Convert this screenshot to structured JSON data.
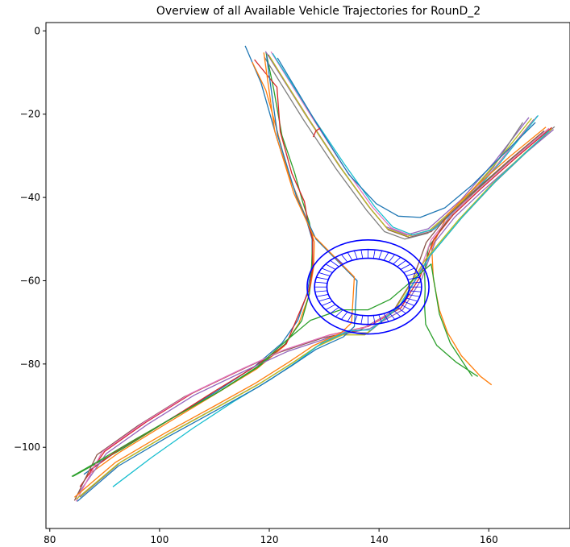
{
  "chart_data": {
    "type": "line",
    "title": "Overview of all Available Vehicle Trajectories for RounD_2",
    "xlabel": "",
    "ylabel": "",
    "xlim": [
      79.3,
      174.8
    ],
    "ylim": [
      -119.5,
      2.0
    ],
    "x_ticks": [
      80,
      100,
      120,
      140,
      160
    ],
    "y_ticks": [
      0,
      -20,
      -40,
      -60,
      -80,
      -100
    ],
    "grid": false,
    "legend": "none",
    "palette": [
      "#1f77b4",
      "#ff7f0e",
      "#2ca02c",
      "#d62728",
      "#9467bd",
      "#8c564b",
      "#e377c2",
      "#7f7f7f",
      "#bcbd22",
      "#17becf"
    ],
    "roundabout": {
      "center": [
        138.0,
        -61.5
      ],
      "outer_radii": [
        22.2,
        11.3
      ],
      "middle_radii": [
        19.5,
        9.0
      ],
      "inner_radii": [
        15.0,
        6.9
      ],
      "color": "#0000ff"
    },
    "series": [
      {
        "x": [
          115.6,
          118.5,
          121.2,
          123.5,
          125.5,
          126.9,
          127.8,
          127.8,
          126.9,
          125.2,
          122.3,
          117.4,
          110.5,
          101.6,
          92.7,
          86.2
        ],
        "y": [
          -3.6,
          -12.5,
          -25.0,
          -34.5,
          -41.0,
          -46.0,
          -50.0,
          -56.0,
          -63.0,
          -69.5,
          -75.0,
          -80.5,
          -86.5,
          -93.5,
          -100.5,
          -106.5
        ]
      },
      {
        "x": [
          116.9,
          119.4,
          121.5,
          123.5,
          125.7,
          127.3,
          128.2,
          128.1,
          127.2,
          125.4,
          122.7,
          117.7,
          110.2,
          101.4,
          92.7,
          86.7
        ],
        "y": [
          -7.5,
          -14.3,
          -24.3,
          -34.5,
          -41.7,
          -46.7,
          -50.7,
          -56.7,
          -63.7,
          -70.2,
          -75.7,
          -81.2,
          -87.2,
          -94.2,
          -101.2,
          -106.9
        ]
      },
      {
        "x": [
          119.4,
          120.8,
          122.3,
          124.6,
          126.1,
          127.3,
          127.9,
          127.7,
          127.3,
          125.9,
          122.8,
          118.2,
          110.9,
          101.8,
          93.2,
          84.2
        ],
        "y": [
          -5.1,
          -14.0,
          -25.1,
          -34.0,
          -41.1,
          -46.0,
          -50.4,
          -56.9,
          -63.2,
          -69.6,
          -75.3,
          -80.5,
          -86.6,
          -93.4,
          -100.4,
          -107.0
        ]
      },
      {
        "x": [
          117.3,
          121.4,
          122.0,
          124.1,
          126.4,
          127.1,
          127.9,
          127.9,
          127.2,
          125.0,
          123.1,
          117.4,
          110.2,
          101.8,
          92.7,
          87.3
        ],
        "y": [
          -6.9,
          -13.5,
          -24.2,
          -34.2,
          -41.0,
          -46.4,
          -50.0,
          -57.2,
          -62.4,
          -69.2,
          -75.2,
          -80.6,
          -86.4,
          -93.4,
          -100.4,
          -105.6
        ]
      },
      {
        "x": [
          119.3,
          126.5,
          132.5,
          138.0,
          141.2,
          145.0,
          149.0,
          155.0,
          161.0,
          167.3
        ],
        "y": [
          -4.9,
          -20.0,
          -32.0,
          -42.0,
          -47.0,
          -49.0,
          -47.5,
          -40.5,
          -31.5,
          -20.8
        ]
      },
      {
        "x": [
          119.8,
          127.0,
          133.0,
          138.5,
          141.7,
          145.5,
          149.5,
          155.5,
          161.5,
          168.2
        ],
        "y": [
          -5.7,
          -20.8,
          -32.8,
          -42.8,
          -47.8,
          -49.6,
          -48.2,
          -41.2,
          -32.2,
          -21.3
        ]
      },
      {
        "x": [
          120.3,
          127.5,
          133.4,
          138.8,
          142.2,
          145.8,
          149.8,
          155.8,
          161.8,
          168.8
        ],
        "y": [
          -5.0,
          -20.2,
          -32.3,
          -42.3,
          -47.3,
          -49.2,
          -47.8,
          -40.8,
          -31.8,
          -20.5
        ]
      },
      {
        "x": [
          119.1,
          126.2,
          132.2,
          137.8,
          141.0,
          144.7,
          148.9,
          154.9,
          160.9,
          166.2
        ],
        "y": [
          -6.3,
          -21.3,
          -33.2,
          -43.2,
          -48.2,
          -50.0,
          -48.6,
          -41.6,
          -32.6,
          -22.0
        ]
      },
      {
        "x": [
          120.0,
          126.8,
          132.8,
          138.3,
          141.5,
          145.2,
          149.2,
          155.2,
          161.2,
          167.8
        ],
        "y": [
          -6.0,
          -20.5,
          -32.5,
          -42.5,
          -47.5,
          -49.3,
          -47.9,
          -40.9,
          -31.9,
          -21.0
        ]
      },
      {
        "x": [
          120.6,
          127.8,
          133.8,
          139.2,
          142.5,
          146.1,
          150.1,
          156.1,
          162.1,
          169.0
        ],
        "y": [
          -5.4,
          -20.4,
          -32.2,
          -42.2,
          -47.1,
          -49.0,
          -47.6,
          -40.6,
          -31.6,
          -20.3
        ]
      },
      {
        "x": [
          121.5,
          128.5,
          134.5,
          139.5,
          143.5,
          147.5,
          152.0,
          157.0,
          162.0,
          168.5
        ],
        "y": [
          -6.5,
          -22.0,
          -34.5,
          -41.5,
          -44.5,
          -44.8,
          -42.5,
          -37.0,
          -30.5,
          -22.0
        ]
      },
      {
        "x": [
          170.4,
          164.0,
          157.5,
          152.5,
          149.6,
          149.9,
          150.4,
          151.0,
          152.5,
          155.0,
          158.5,
          160.5
        ],
        "y": [
          -23.1,
          -30.0,
          -37.5,
          -44.0,
          -52.0,
          -59.5,
          -63.0,
          -67.0,
          -72.5,
          -78.0,
          -83.0,
          -85.0
        ]
      },
      {
        "x": [
          170.9,
          164.5,
          158.0,
          153.0,
          149.0,
          148.3,
          148.4,
          148.3,
          148.5,
          150.5,
          154.0,
          158.0
        ],
        "y": [
          -23.5,
          -30.5,
          -38.0,
          -44.5,
          -52.0,
          -58.0,
          -62.0,
          -66.0,
          -70.5,
          -75.5,
          -79.5,
          -83.0
        ]
      },
      {
        "x": [
          171.5,
          165.0,
          158.5,
          153.5,
          150.0,
          147.5,
          144.0,
          138.0,
          131.0,
          123.0,
          115.5,
          106.0,
          97.5,
          90.0,
          85.5
        ],
        "y": [
          -23.2,
          -30.4,
          -38.0,
          -44.2,
          -50.0,
          -59.0,
          -66.5,
          -71.0,
          -73.0,
          -76.5,
          -81.0,
          -87.0,
          -94.0,
          -101.0,
          -109.5
        ]
      },
      {
        "x": [
          171.8,
          165.3,
          158.8,
          153.8,
          150.3,
          147.8,
          144.3,
          138.3,
          131.3,
          123.3,
          115.8,
          106.3,
          97.8,
          90.3,
          85.0
        ],
        "y": [
          -23.7,
          -30.9,
          -38.5,
          -44.7,
          -50.5,
          -59.5,
          -67.0,
          -71.5,
          -73.5,
          -77.0,
          -81.5,
          -87.5,
          -94.5,
          -101.5,
          -111.5
        ]
      },
      {
        "x": [
          170.1,
          163.6,
          157.1,
          152.1,
          148.6,
          146.1,
          142.6,
          136.6,
          129.6,
          121.6,
          114.1,
          104.6,
          96.1,
          88.6,
          84.5
        ],
        "y": [
          -24.0,
          -31.2,
          -38.8,
          -45.0,
          -50.8,
          -59.8,
          -67.3,
          -71.8,
          -73.8,
          -77.3,
          -81.8,
          -87.8,
          -94.8,
          -101.8,
          -112.8
        ]
      },
      {
        "x": [
          171.0,
          164.5,
          158.0,
          153.0,
          149.5,
          147.0,
          143.5,
          137.5,
          130.5,
          122.5,
          115.0,
          105.5,
          97.0,
          89.5,
          84.8
        ],
        "y": [
          -23.4,
          -30.6,
          -38.2,
          -44.4,
          -50.2,
          -59.2,
          -66.7,
          -71.2,
          -73.2,
          -76.7,
          -81.2,
          -87.2,
          -94.2,
          -101.2,
          -113.0
        ]
      },
      {
        "x": [
          85.5,
          93.0,
          102.0,
          111.0,
          118.5,
          124.5,
          129.0,
          134.0,
          138.0,
          143.5,
          149.0,
          155.0,
          161.0,
          167.0,
          172.0
        ],
        "y": [
          -112.0,
          -103.5,
          -96.5,
          -90.0,
          -84.5,
          -79.5,
          -75.5,
          -72.5,
          -72.5,
          -66.5,
          -54.5,
          -45.0,
          -36.5,
          -29.0,
          -23.0
        ]
      },
      {
        "x": [
          84.8,
          92.4,
          101.4,
          110.4,
          117.9,
          123.9,
          128.4,
          133.4,
          137.4,
          142.9,
          148.4,
          154.4,
          160.4,
          166.4,
          171.5
        ],
        "y": [
          -112.5,
          -104.0,
          -97.0,
          -90.5,
          -85.0,
          -80.0,
          -76.0,
          -73.0,
          -73.0,
          -67.0,
          -55.0,
          -45.5,
          -37.0,
          -29.5,
          -23.5
        ]
      },
      {
        "x": [
          91.5,
          98.5,
          106.0,
          113.5,
          120.5,
          125.5,
          129.5,
          134.5,
          138.5,
          143.8,
          149.3,
          155.3,
          161.3,
          167.3,
          171.0
        ],
        "y": [
          -109.5,
          -102.5,
          -95.5,
          -89.0,
          -83.5,
          -79.0,
          -75.0,
          -72.0,
          -71.8,
          -66.0,
          -54.0,
          -44.5,
          -36.0,
          -28.5,
          -24.0
        ]
      },
      {
        "x": [
          85.0,
          92.5,
          101.5,
          110.5,
          118.0,
          124.0,
          128.5,
          133.5,
          135.5,
          136.0,
          133.0,
          128.5,
          125.0,
          121.5,
          119.5
        ],
        "y": [
          -113.0,
          -104.5,
          -97.5,
          -91.0,
          -85.5,
          -80.5,
          -76.5,
          -73.5,
          -71.0,
          -60.0,
          -56.0,
          -50.0,
          -40.0,
          -25.0,
          -6.0
        ]
      },
      {
        "x": [
          84.5,
          92.0,
          101.0,
          110.0,
          117.5,
          123.5,
          128.0,
          133.0,
          135.0,
          135.5,
          132.5,
          128.0,
          124.5,
          121.0,
          119.0
        ],
        "y": [
          -112.0,
          -103.6,
          -96.6,
          -90.1,
          -84.6,
          -79.6,
          -75.6,
          -72.6,
          -70.1,
          -59.1,
          -55.1,
          -49.1,
          -39.1,
          -24.1,
          -5.2
        ]
      },
      {
        "x": [
          84.0,
          88.0,
          95.0,
          103.0,
          111.0,
          118.0,
          123.0,
          127.5,
          133.0,
          138.0,
          142.0,
          146.0,
          149.5,
          150.0,
          151.0,
          153.0,
          157.0
        ],
        "y": [
          -107.0,
          -104.0,
          -98.5,
          -92.5,
          -86.5,
          -80.5,
          -74.5,
          -69.5,
          -67.0,
          -67.0,
          -64.5,
          -60.0,
          -56.0,
          -60.0,
          -68.0,
          -75.0,
          -83.0
        ]
      },
      {
        "x": [
          128.0,
          128.5,
          129.3
        ],
        "y": [
          -25.5,
          -24.0,
          -23.3
        ]
      }
    ]
  }
}
